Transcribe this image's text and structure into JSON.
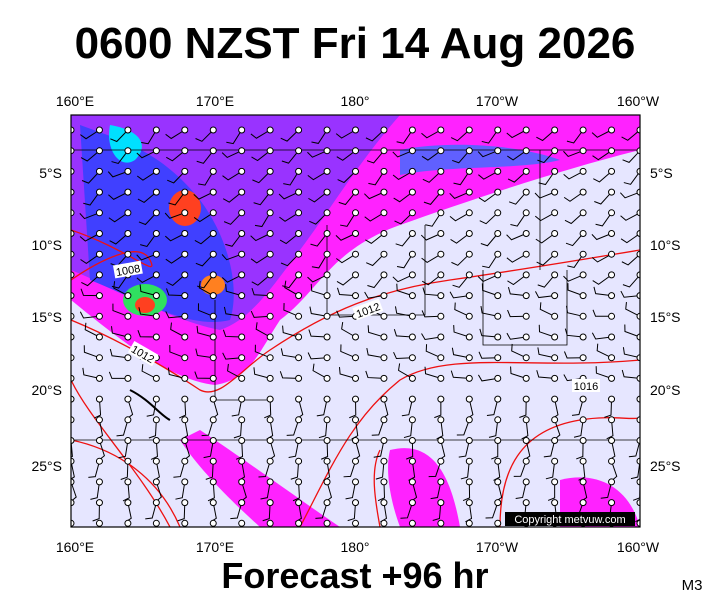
{
  "title": "0600 NZST Fri 14 Aug 2026",
  "footer": "Forecast +96 hr",
  "model": "M3",
  "copyright": "Copyright metvuw.com",
  "longitudes": [
    "160°E",
    "170°E",
    "180°",
    "170°W",
    "160°W"
  ],
  "latitudes": [
    "5°S",
    "10°S",
    "15°S",
    "20°S",
    "25°S"
  ],
  "isobar_labels": [
    "1008",
    "1012",
    "1012",
    "1016"
  ]
}
